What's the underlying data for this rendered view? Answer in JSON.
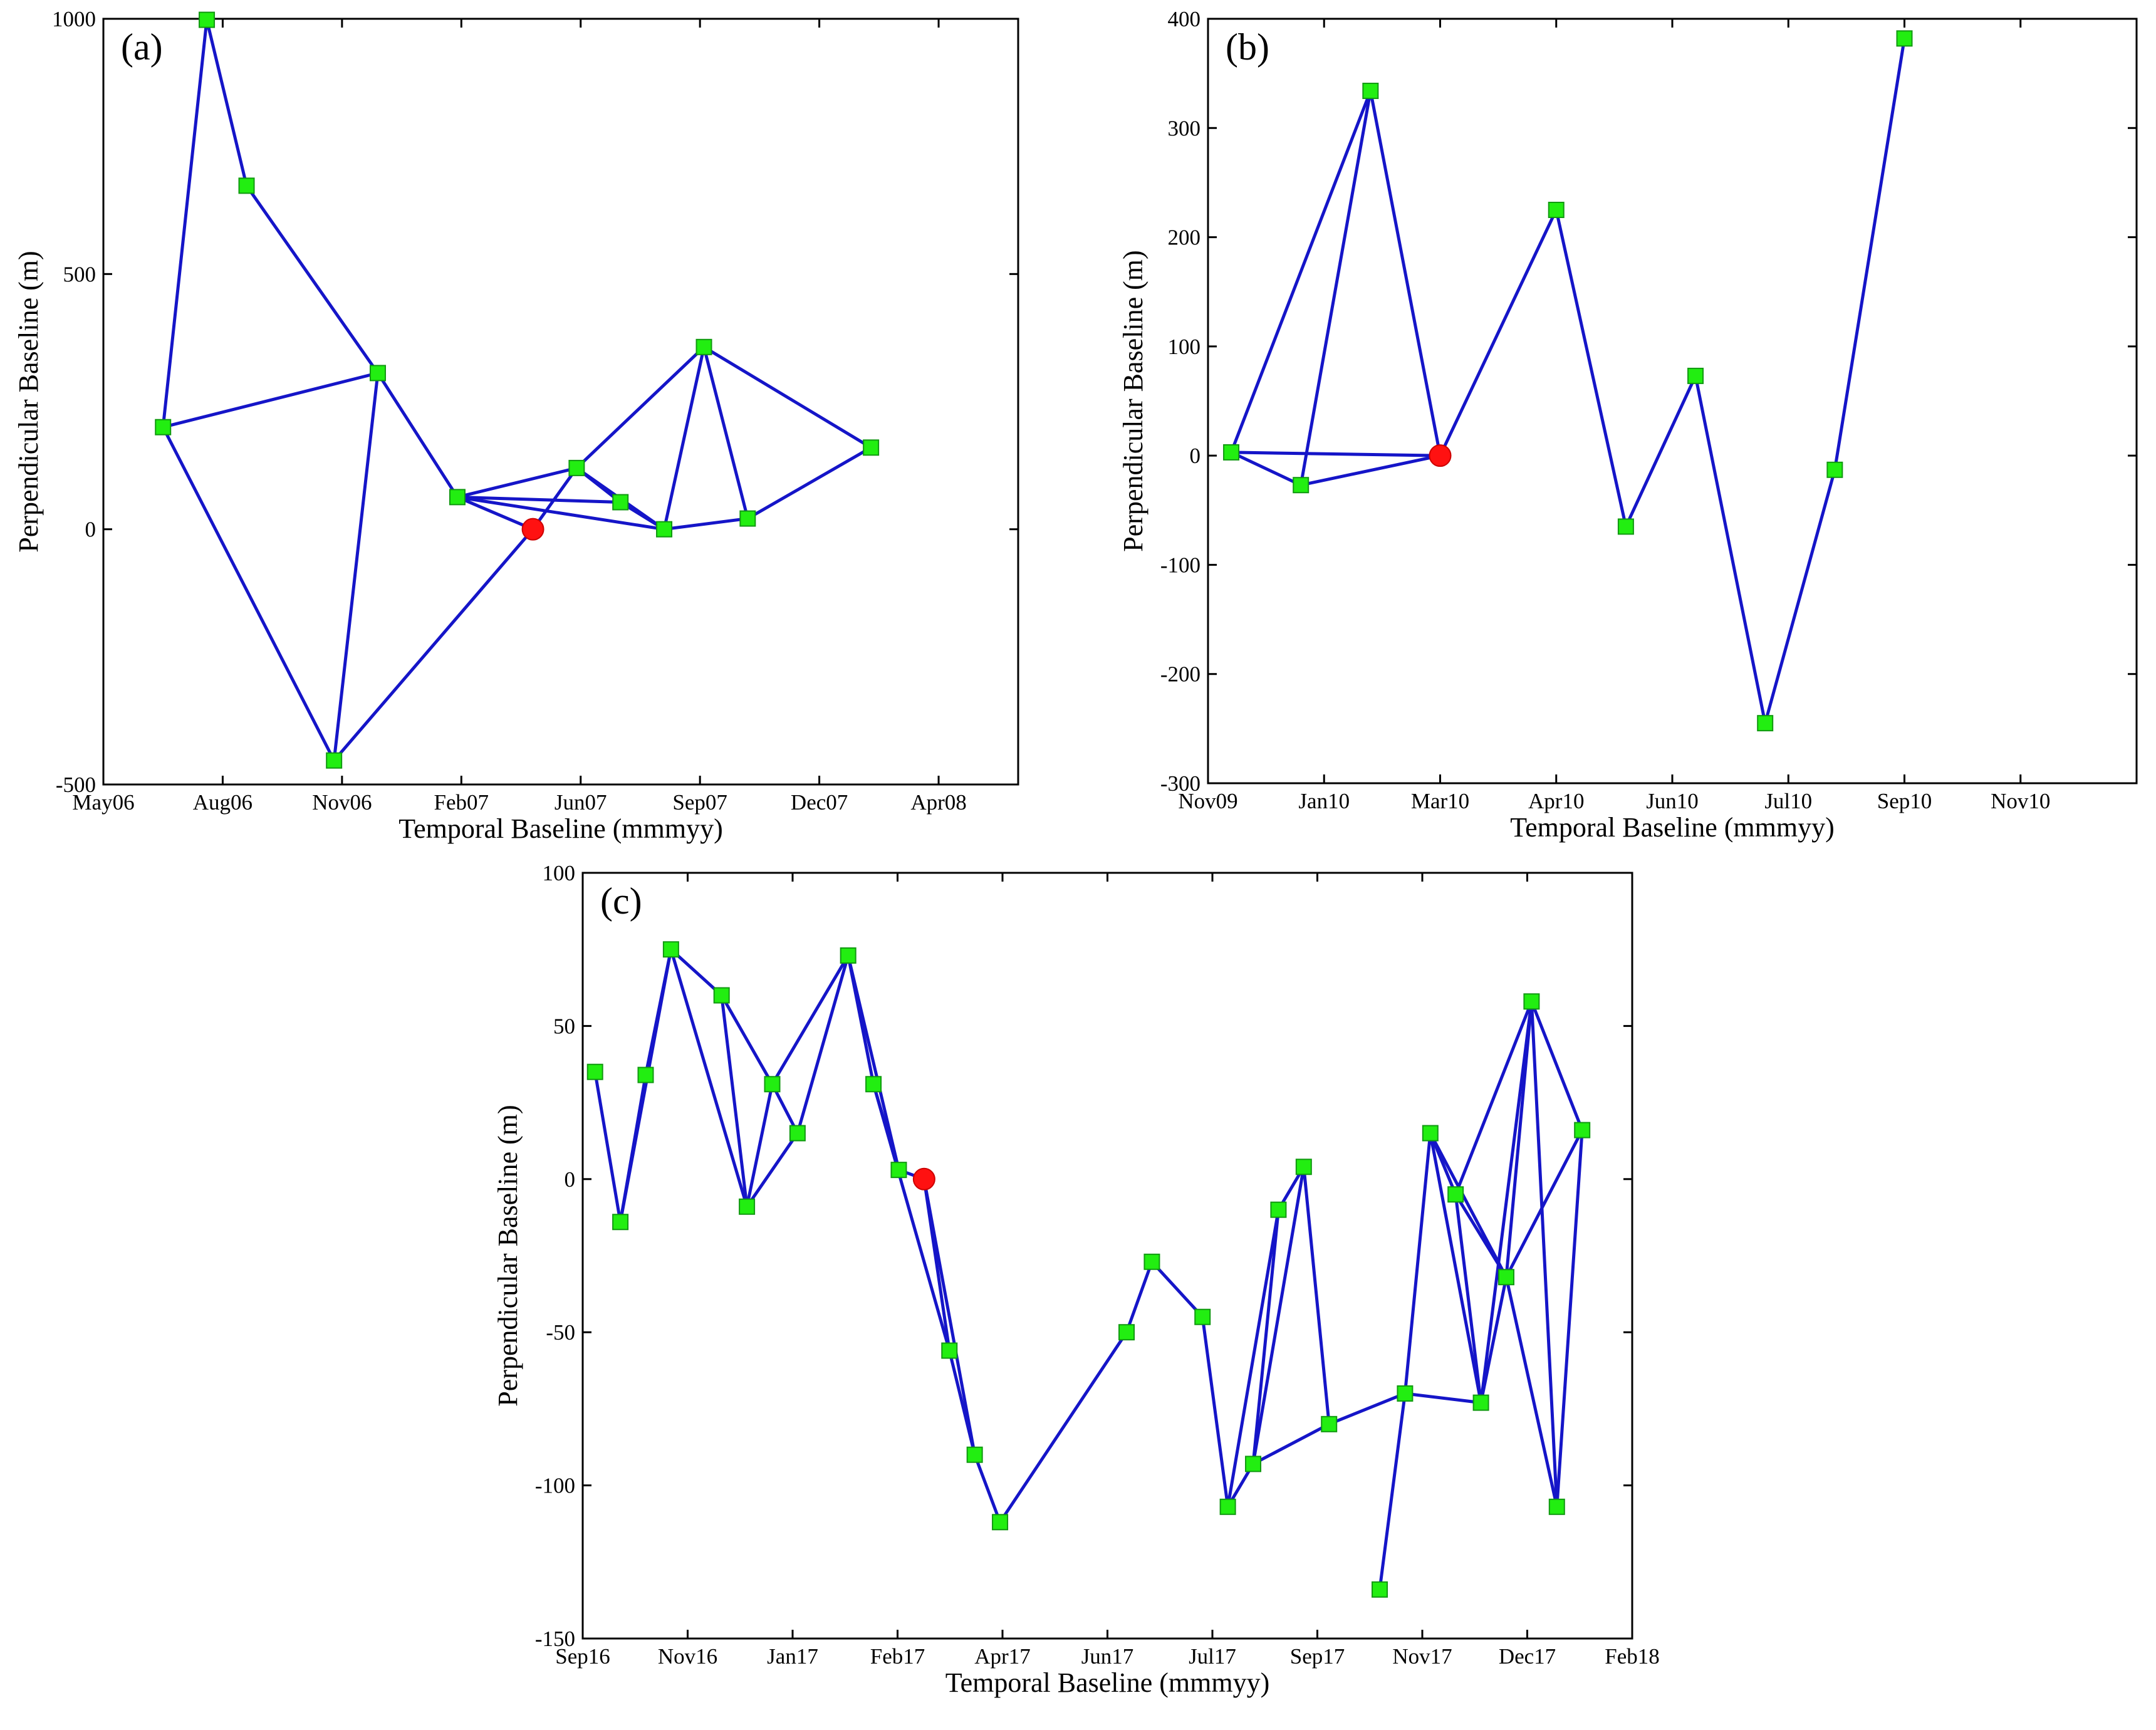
{
  "colors": {
    "edge": "#1515c8",
    "node": "#22ee11",
    "node_border": "#119911",
    "reference": "#ff1111",
    "axis": "#000000"
  },
  "chart_data": [
    {
      "panel": "(a)",
      "type": "scatter",
      "title": "",
      "xlabel": "Temporal Baseline (mmmyy)",
      "ylabel": "Perpendicular Baseline (m)",
      "xlim": [
        0,
        23
      ],
      "ylim": [
        -500,
        1000
      ],
      "xticks": [
        {
          "v": 0,
          "label": "May06"
        },
        {
          "v": 3,
          "label": "Aug06"
        },
        {
          "v": 6,
          "label": "Nov06"
        },
        {
          "v": 9,
          "label": "Feb07"
        },
        {
          "v": 12,
          "label": "Jun07"
        },
        {
          "v": 15,
          "label": "Sep07"
        },
        {
          "v": 18,
          "label": "Dec07"
        },
        {
          "v": 21,
          "label": "Apr08"
        }
      ],
      "yticks": [
        {
          "v": -500,
          "label": "-500"
        },
        {
          "v": 0,
          "label": "0"
        },
        {
          "v": 500,
          "label": "500"
        },
        {
          "v": 1000,
          "label": "1000"
        }
      ],
      "nodes": [
        {
          "x": 1.5,
          "y": 200
        },
        {
          "x": 2.6,
          "y": 998
        },
        {
          "x": 3.6,
          "y": 673
        },
        {
          "x": 6.9,
          "y": 306
        },
        {
          "x": 5.8,
          "y": -453
        },
        {
          "x": 8.9,
          "y": 63
        },
        {
          "x": 11.9,
          "y": 120
        },
        {
          "x": 13.0,
          "y": 53
        },
        {
          "x": 14.1,
          "y": 0
        },
        {
          "x": 15.1,
          "y": 357
        },
        {
          "x": 16.2,
          "y": 21
        },
        {
          "x": 19.3,
          "y": 160
        }
      ],
      "reference": {
        "x": 10.8,
        "y": 0
      },
      "edges": [
        [
          0,
          1
        ],
        [
          1,
          2
        ],
        [
          2,
          3
        ],
        [
          0,
          3
        ],
        [
          0,
          4
        ],
        [
          4,
          3
        ],
        [
          3,
          5
        ],
        [
          4,
          "ref"
        ],
        [
          5,
          6
        ],
        [
          5,
          7
        ],
        [
          5,
          8
        ],
        [
          5,
          "ref"
        ],
        [
          "ref",
          6
        ],
        [
          6,
          7
        ],
        [
          6,
          8
        ],
        [
          6,
          9
        ],
        [
          7,
          8
        ],
        [
          8,
          9
        ],
        [
          9,
          10
        ],
        [
          8,
          10
        ],
        [
          9,
          11
        ],
        [
          10,
          11
        ]
      ]
    },
    {
      "panel": "(b)",
      "type": "scatter",
      "title": "",
      "xlabel": "Temporal Baseline (mmmyy)",
      "ylabel": "Perpendicular Baseline (m)",
      "xlim": [
        0,
        12
      ],
      "ylim": [
        -300,
        400
      ],
      "xticks": [
        {
          "v": 0,
          "label": "Nov09"
        },
        {
          "v": 1.5,
          "label": "Jan10"
        },
        {
          "v": 3,
          "label": "Mar10"
        },
        {
          "v": 4.5,
          "label": "Apr10"
        },
        {
          "v": 6,
          "label": "Jun10"
        },
        {
          "v": 7.5,
          "label": "Jul10"
        },
        {
          "v": 9,
          "label": "Sep10"
        },
        {
          "v": 10.5,
          "label": "Nov10"
        }
      ],
      "yticks": [
        {
          "v": -300,
          "label": "-300"
        },
        {
          "v": -200,
          "label": "-200"
        },
        {
          "v": -100,
          "label": "-100"
        },
        {
          "v": 0,
          "label": "0"
        },
        {
          "v": 100,
          "label": "100"
        },
        {
          "v": 200,
          "label": "200"
        },
        {
          "v": 300,
          "label": "300"
        },
        {
          "v": 400,
          "label": "400"
        }
      ],
      "nodes": [
        {
          "x": 0.3,
          "y": 3
        },
        {
          "x": 1.2,
          "y": -27
        },
        {
          "x": 2.1,
          "y": 334
        },
        {
          "x": 4.5,
          "y": 225
        },
        {
          "x": 5.4,
          "y": -65
        },
        {
          "x": 6.3,
          "y": 73
        },
        {
          "x": 7.2,
          "y": -245
        },
        {
          "x": 8.1,
          "y": -13
        },
        {
          "x": 9.0,
          "y": 382
        }
      ],
      "reference": {
        "x": 3.0,
        "y": 0
      },
      "edges": [
        [
          0,
          2
        ],
        [
          1,
          2
        ],
        [
          2,
          "ref"
        ],
        [
          0,
          1
        ],
        [
          0,
          "ref"
        ],
        [
          1,
          "ref"
        ],
        [
          "ref",
          3
        ],
        [
          3,
          4
        ],
        [
          4,
          5
        ],
        [
          5,
          6
        ],
        [
          6,
          7
        ],
        [
          7,
          8
        ]
      ]
    },
    {
      "panel": "(c)",
      "type": "scatter",
      "title": "",
      "xlabel": "Temporal Baseline (mmmyy)",
      "ylabel": "Perpendicular Baseline (m)",
      "xlim": [
        0,
        17
      ],
      "ylim": [
        -150,
        100
      ],
      "xticks": [
        {
          "v": 0,
          "label": "Sep16"
        },
        {
          "v": 1.7,
          "label": "Nov16"
        },
        {
          "v": 3.4,
          "label": "Jan17"
        },
        {
          "v": 5.1,
          "label": "Feb17"
        },
        {
          "v": 6.8,
          "label": "Apr17"
        },
        {
          "v": 8.5,
          "label": "Jun17"
        },
        {
          "v": 10.2,
          "label": "Jul17"
        },
        {
          "v": 11.9,
          "label": "Sep17"
        },
        {
          "v": 13.6,
          "label": "Nov17"
        },
        {
          "v": 15.3,
          "label": "Dec17"
        },
        {
          "v": 17,
          "label": "Feb18"
        }
      ],
      "yticks": [
        {
          "v": -150,
          "label": "-150"
        },
        {
          "v": -100,
          "label": "-100"
        },
        {
          "v": -50,
          "label": "-50"
        },
        {
          "v": 0,
          "label": "0"
        },
        {
          "v": 50,
          "label": "50"
        },
        {
          "v": 100,
          "label": "100"
        }
      ],
      "nodes": [
        {
          "x": 0.2,
          "y": 35
        },
        {
          "x": 0.61,
          "y": -14
        },
        {
          "x": 1.02,
          "y": 34
        },
        {
          "x": 1.43,
          "y": 75
        },
        {
          "x": 2.25,
          "y": 60
        },
        {
          "x": 2.66,
          "y": -9
        },
        {
          "x": 3.07,
          "y": 31
        },
        {
          "x": 3.48,
          "y": 15
        },
        {
          "x": 4.3,
          "y": 73
        },
        {
          "x": 4.71,
          "y": 31
        },
        {
          "x": 5.12,
          "y": 3
        },
        {
          "x": 5.94,
          "y": -56
        },
        {
          "x": 6.35,
          "y": -90
        },
        {
          "x": 6.76,
          "y": -112
        },
        {
          "x": 8.81,
          "y": -50
        },
        {
          "x": 9.22,
          "y": -27
        },
        {
          "x": 10.04,
          "y": -45
        },
        {
          "x": 10.45,
          "y": -107
        },
        {
          "x": 10.86,
          "y": -93
        },
        {
          "x": 11.27,
          "y": -10
        },
        {
          "x": 11.68,
          "y": 4
        },
        {
          "x": 12.09,
          "y": -80
        },
        {
          "x": 12.91,
          "y": -134
        },
        {
          "x": 13.32,
          "y": -70
        },
        {
          "x": 13.73,
          "y": 15
        },
        {
          "x": 14.14,
          "y": -5
        },
        {
          "x": 14.55,
          "y": -73
        },
        {
          "x": 14.96,
          "y": -32
        },
        {
          "x": 15.37,
          "y": 58
        },
        {
          "x": 15.78,
          "y": -107
        },
        {
          "x": 16.19,
          "y": 16
        }
      ],
      "reference": {
        "x": 5.53,
        "y": 0
      },
      "edges": [
        [
          0,
          1
        ],
        [
          1,
          2
        ],
        [
          2,
          3
        ],
        [
          1,
          3
        ],
        [
          3,
          4
        ],
        [
          3,
          5
        ],
        [
          4,
          5
        ],
        [
          4,
          6
        ],
        [
          5,
          6
        ],
        [
          5,
          7
        ],
        [
          6,
          7
        ],
        [
          7,
          8
        ],
        [
          6,
          8
        ],
        [
          8,
          9
        ],
        [
          8,
          10
        ],
        [
          9,
          10
        ],
        [
          10,
          "ref"
        ],
        [
          9,
          11
        ],
        [
          "ref",
          11
        ],
        [
          "ref",
          12
        ],
        [
          11,
          12
        ],
        [
          12,
          13
        ],
        [
          13,
          14
        ],
        [
          14,
          15
        ],
        [
          15,
          16
        ],
        [
          16,
          17
        ],
        [
          17,
          18
        ],
        [
          17,
          19
        ],
        [
          18,
          19
        ],
        [
          18,
          20
        ],
        [
          19,
          20
        ],
        [
          18,
          21
        ],
        [
          20,
          21
        ],
        [
          21,
          23
        ],
        [
          22,
          23
        ],
        [
          23,
          24
        ],
        [
          23,
          26
        ],
        [
          24,
          25
        ],
        [
          24,
          26
        ],
        [
          25,
          26
        ],
        [
          25,
          27
        ],
        [
          24,
          27
        ],
        [
          26,
          28
        ],
        [
          26,
          27
        ],
        [
          25,
          28
        ],
        [
          27,
          28
        ],
        [
          28,
          29
        ],
        [
          27,
          29
        ],
        [
          28,
          30
        ],
        [
          27,
          30
        ],
        [
          29,
          30
        ]
      ]
    }
  ]
}
